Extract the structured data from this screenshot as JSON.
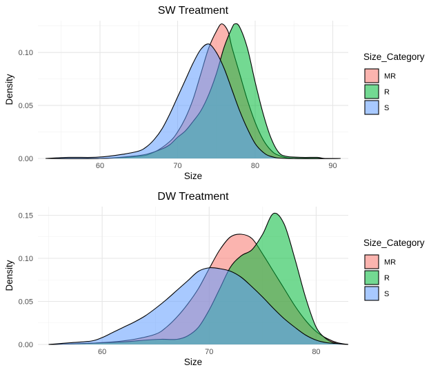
{
  "chart_data": [
    {
      "type": "area",
      "title": "SW Treatment",
      "xlabel": "Size",
      "ylabel": "Density",
      "xlim": [
        52,
        92
      ],
      "ylim": [
        0,
        0.13
      ],
      "xticks": [
        60,
        70,
        80,
        90
      ],
      "yticks": [
        0.0,
        0.05,
        0.1
      ],
      "ytick_labels": [
        "0.00",
        "0.05",
        "0.10"
      ],
      "grid": true,
      "legend": {
        "title": "Size_Category",
        "position": "right"
      },
      "series": [
        {
          "name": "MR",
          "color": "#F8766D",
          "x": [
            53,
            60,
            65,
            67,
            69,
            70,
            71,
            72,
            73,
            74,
            75,
            75.7,
            76.5,
            77,
            78,
            79,
            80,
            81,
            82,
            83,
            85,
            91
          ],
          "y": [
            0,
            0,
            0.002,
            0.006,
            0.016,
            0.025,
            0.038,
            0.056,
            0.08,
            0.104,
            0.12,
            0.127,
            0.12,
            0.105,
            0.08,
            0.055,
            0.034,
            0.018,
            0.008,
            0.003,
            0,
            0
          ]
        },
        {
          "name": "R",
          "color": "#00BA38",
          "x": [
            53,
            60,
            64,
            66,
            68,
            69,
            70,
            71,
            72,
            73,
            74,
            75,
            76,
            77,
            77.4,
            78,
            79,
            80,
            81,
            82,
            83,
            84,
            86,
            88,
            89,
            91
          ],
          "y": [
            0,
            0,
            0.002,
            0.004,
            0.009,
            0.013,
            0.02,
            0.026,
            0.035,
            0.045,
            0.06,
            0.08,
            0.105,
            0.123,
            0.127,
            0.124,
            0.104,
            0.072,
            0.043,
            0.02,
            0.006,
            0.002,
            0.001,
            0.001,
            0,
            0
          ]
        },
        {
          "name": "S",
          "color": "#619CFF",
          "x": [
            53,
            56,
            59,
            61,
            63,
            65,
            66,
            67,
            68,
            69,
            70,
            71,
            72,
            73,
            74,
            75,
            76,
            77,
            78,
            79,
            80,
            81,
            82,
            84,
            91
          ],
          "y": [
            0,
            0.001,
            0.001,
            0.002,
            0.004,
            0.007,
            0.011,
            0.018,
            0.028,
            0.042,
            0.058,
            0.074,
            0.09,
            0.103,
            0.108,
            0.1,
            0.085,
            0.065,
            0.045,
            0.028,
            0.014,
            0.006,
            0.002,
            0,
            0
          ]
        }
      ]
    },
    {
      "type": "area",
      "title": "DW Treatment",
      "xlabel": "Size",
      "ylabel": "Density",
      "xlim": [
        54,
        83
      ],
      "ylim": [
        0,
        0.16
      ],
      "xticks": [
        60,
        70,
        80
      ],
      "yticks": [
        0.0,
        0.05,
        0.1,
        0.15
      ],
      "ytick_labels": [
        "0.00",
        "0.05",
        "0.10",
        "0.15"
      ],
      "grid": true,
      "legend": {
        "title": "Size_Category",
        "position": "right"
      },
      "series": [
        {
          "name": "MR",
          "color": "#F8766D",
          "x": [
            55,
            58,
            61,
            63,
            65,
            66,
            67,
            68,
            69,
            70,
            71,
            72,
            73,
            74,
            75,
            76,
            77,
            78,
            79,
            80,
            81,
            82,
            83
          ],
          "y": [
            0,
            0.001,
            0.003,
            0.006,
            0.012,
            0.02,
            0.032,
            0.047,
            0.065,
            0.088,
            0.11,
            0.125,
            0.128,
            0.123,
            0.105,
            0.085,
            0.065,
            0.045,
            0.028,
            0.015,
            0.007,
            0.002,
            0
          ]
        },
        {
          "name": "R",
          "color": "#00BA38",
          "x": [
            55,
            58,
            62,
            64,
            65.5,
            67,
            68,
            69,
            70,
            71,
            72,
            73,
            74,
            75,
            76,
            77,
            78,
            79,
            80,
            81,
            82,
            83
          ],
          "y": [
            0,
            0.001,
            0.003,
            0.005,
            0.006,
            0.006,
            0.01,
            0.02,
            0.04,
            0.065,
            0.09,
            0.103,
            0.11,
            0.128,
            0.152,
            0.14,
            0.1,
            0.055,
            0.02,
            0.006,
            0.001,
            0
          ]
        },
        {
          "name": "S",
          "color": "#619CFF",
          "x": [
            55,
            57,
            59,
            60,
            61,
            62,
            63,
            64,
            65,
            66,
            67,
            68,
            69,
            70,
            71,
            72,
            73,
            74,
            75,
            76,
            77,
            78,
            79,
            80,
            81,
            82,
            83
          ],
          "y": [
            0,
            0.002,
            0.004,
            0.008,
            0.014,
            0.02,
            0.026,
            0.033,
            0.042,
            0.052,
            0.063,
            0.074,
            0.085,
            0.089,
            0.088,
            0.085,
            0.078,
            0.067,
            0.055,
            0.042,
            0.03,
            0.02,
            0.011,
            0.005,
            0.002,
            0.001,
            0
          ]
        }
      ]
    }
  ]
}
